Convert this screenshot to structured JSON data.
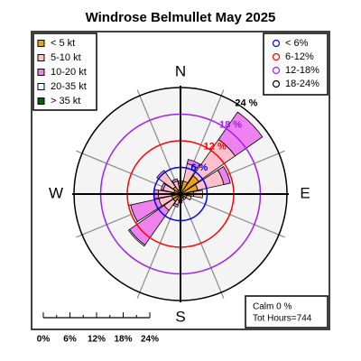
{
  "chart_data": {
    "type": "windrose",
    "title": "Windrose  Belmullet May 2025",
    "categories": [
      "N",
      null,
      null,
      null,
      "E",
      null,
      null,
      null,
      "S",
      null,
      null,
      null,
      "W",
      null,
      null,
      null
    ],
    "series": [
      {
        "name": "< 5  kt",
        "color": "#e8a317",
        "values": [
          1,
          3,
          5,
          4,
          3,
          1.5,
          1,
          1,
          1.5,
          1.5,
          2,
          2,
          2,
          1.5,
          2,
          1
        ]
      },
      {
        "name": "5-10 kt",
        "color": "#ffc0cb",
        "values": [
          1.5,
          4,
          10,
          6,
          2,
          1,
          0.5,
          0.5,
          0.5,
          1,
          2.5,
          3,
          3,
          2.5,
          4,
          2
        ]
      },
      {
        "name": "10-20 kt",
        "color": "#ee82ee",
        "values": [
          0.5,
          1,
          7.5,
          1.5,
          0,
          0,
          0,
          0,
          0,
          0.5,
          9.5,
          6.5,
          1,
          0.5,
          0.5,
          0.5
        ]
      },
      {
        "name": "20-35 kt",
        "color": "#e0ffff",
        "values": [
          0,
          0,
          0,
          0,
          0,
          0,
          0,
          0,
          0,
          0,
          0.3,
          0.5,
          0,
          0,
          0,
          0
        ]
      },
      {
        "name": "> 35 kt",
        "color": "#006400",
        "values": [
          0,
          0,
          0,
          0,
          0,
          0,
          0,
          0,
          0,
          0,
          0,
          0,
          0,
          0,
          0,
          0
        ]
      }
    ],
    "rlim": [
      0,
      24
    ],
    "rticks": [
      {
        "value": 6,
        "label": "6 %"
      },
      {
        "value": 12,
        "label": "12 %"
      },
      {
        "value": 18,
        "label": "18 %"
      },
      {
        "value": 24,
        "label": "24 %"
      }
    ],
    "ring_colors": [
      "#0000ff",
      "#ff0000",
      "#a020f0",
      "#000000"
    ],
    "ring_legend": [
      "< 6%",
      "6-12%",
      "12-18%",
      "18-24%"
    ],
    "scale_ticks": [
      {
        "value": 0,
        "label": "0%"
      },
      {
        "value": 6,
        "label": "6%"
      },
      {
        "value": 12,
        "label": "12%"
      },
      {
        "value": 18,
        "label": "18%"
      },
      {
        "value": 24,
        "label": "24%"
      }
    ],
    "annotations": [
      "Calm 0 %",
      "Tot Hours=744"
    ]
  }
}
